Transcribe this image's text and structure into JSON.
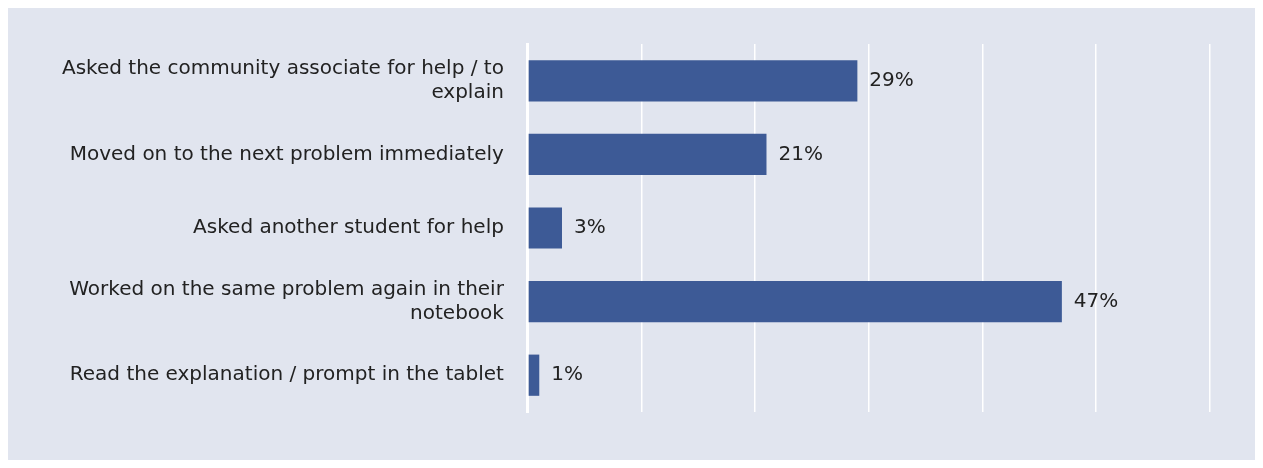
{
  "chart_data": {
    "type": "bar",
    "orientation": "horizontal",
    "categories": [
      "Asked the community associate for help / to explain",
      "Moved on to the next problem immediately",
      "Asked another student for help",
      "Worked on the same problem again in their notebook",
      "Read the explanation / prompt in the tablet"
    ],
    "values": [
      29,
      21,
      3,
      47,
      1
    ],
    "value_labels": [
      "29%",
      "21%",
      "3%",
      "47%",
      "1%"
    ],
    "color": "#3d5a96",
    "xlim": [
      0,
      64
    ],
    "xticks": [
      {
        "value": 0,
        "label": null
      },
      {
        "value": 10,
        "label": null
      },
      {
        "value": 20,
        "label": null
      },
      {
        "value": 30,
        "label": null
      },
      {
        "value": 40,
        "label": null
      },
      {
        "value": 50,
        "label": null
      },
      {
        "value": 60,
        "label": null
      }
    ],
    "tick_labels": "y",
    "grid": "x",
    "legend": false
  }
}
